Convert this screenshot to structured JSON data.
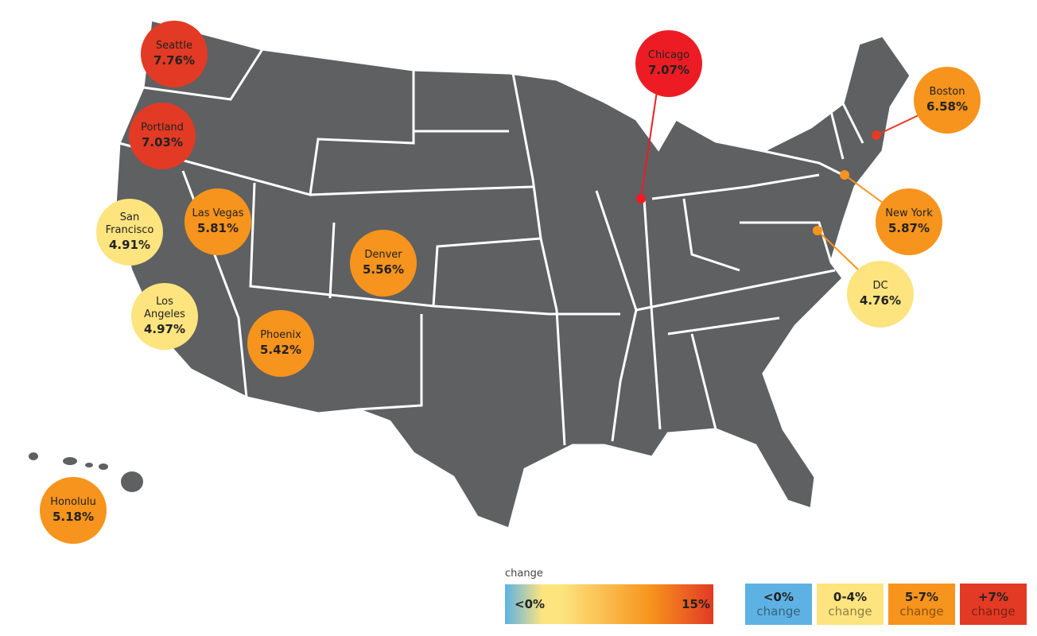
{
  "colors": {
    "map": "#5f6062",
    "border": "#ffffff",
    "neg": "#5eb2e3",
    "low": "#fde47f",
    "mid": "#f7941d",
    "high": "#e23a24",
    "chicago": "#ed1c24"
  },
  "cities": [
    {
      "name": "Seattle",
      "value": "7.76%",
      "tier": "high"
    },
    {
      "name": "Portland",
      "value": "7.03%",
      "tier": "high"
    },
    {
      "name": "San Francisco",
      "value": "4.91%",
      "tier": "low"
    },
    {
      "name": "Los Angeles",
      "value": "4.97%",
      "tier": "low"
    },
    {
      "name": "Las Vegas",
      "value": "5.81%",
      "tier": "mid"
    },
    {
      "name": "Denver",
      "value": "5.56%",
      "tier": "mid"
    },
    {
      "name": "Phoenix",
      "value": "5.42%",
      "tier": "mid"
    },
    {
      "name": "Honolulu",
      "value": "5.18%",
      "tier": "mid"
    },
    {
      "name": "Chicago",
      "value": "7.07%",
      "tier": "chicago"
    },
    {
      "name": "Boston",
      "value": "6.58%",
      "tier": "mid"
    },
    {
      "name": "New York",
      "value": "5.87%",
      "tier": "mid"
    },
    {
      "name": "DC",
      "value": "4.76%",
      "tier": "low"
    }
  ],
  "legend": {
    "gradient_title": "change",
    "gradient_min": "<0%",
    "gradient_max": "15%",
    "bins": [
      {
        "range": "<0%",
        "label": "change",
        "tier": "neg"
      },
      {
        "range": "0-4%",
        "label": "change",
        "tier": "low"
      },
      {
        "range": "5-7%",
        "label": "change",
        "tier": "mid"
      },
      {
        "range": "+7%",
        "label": "change",
        "tier": "high"
      }
    ]
  }
}
